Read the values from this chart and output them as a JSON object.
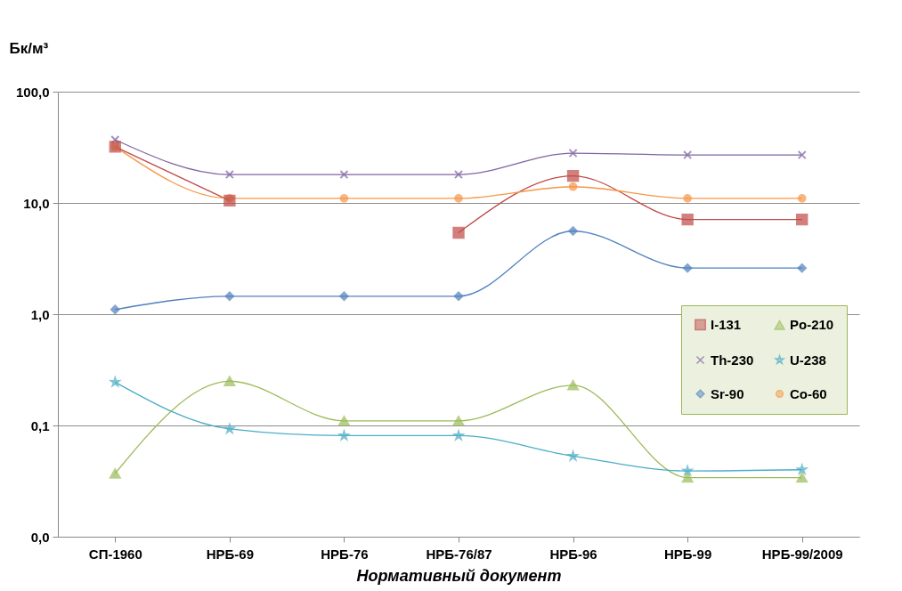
{
  "chart_data": {
    "type": "line",
    "xlabel": "Нормативный документ",
    "ylabel": "Бк/м³",
    "categories": [
      "СП-1960",
      "НРБ-69",
      "НРБ-76",
      "НРБ-76/87",
      "НРБ-96",
      "НРБ-99",
      "НРБ-99/2009"
    ],
    "log": true,
    "ylim": [
      0.01,
      100
    ],
    "yticks": [
      {
        "value": 0.01,
        "label": "0,0"
      },
      {
        "value": 0.1,
        "label": "0,1"
      },
      {
        "value": 1,
        "label": "1,0"
      },
      {
        "value": 10,
        "label": "10,0"
      },
      {
        "value": 100,
        "label": "100,0"
      }
    ],
    "grid": "y",
    "legend": "right",
    "series": [
      {
        "name": "I-131",
        "color": "#be4b48",
        "marker": "square",
        "values": [
          32,
          10.5,
          null,
          5.4,
          17.5,
          7.1,
          7.1
        ]
      },
      {
        "name": "Po-210",
        "color": "#9bbb59",
        "marker": "triangle",
        "values": [
          0.037,
          0.25,
          0.11,
          0.11,
          0.23,
          0.034,
          0.034
        ]
      },
      {
        "name": "Th-230",
        "color": "#8064a2",
        "marker": "cross",
        "values": [
          37,
          18,
          18,
          18,
          28,
          27,
          27
        ]
      },
      {
        "name": "U-238",
        "color": "#4bacc6",
        "marker": "star",
        "values": [
          0.245,
          0.093,
          0.081,
          0.081,
          0.053,
          0.039,
          0.04
        ]
      },
      {
        "name": "Sr-90",
        "color": "#4f81bd",
        "marker": "diamond",
        "values": [
          1.1,
          1.45,
          1.45,
          1.45,
          5.6,
          2.6,
          2.6
        ]
      },
      {
        "name": "Co-60",
        "color": "#f79646",
        "marker": "circle",
        "values": [
          32,
          11,
          11,
          11,
          14,
          11,
          11
        ]
      }
    ]
  }
}
